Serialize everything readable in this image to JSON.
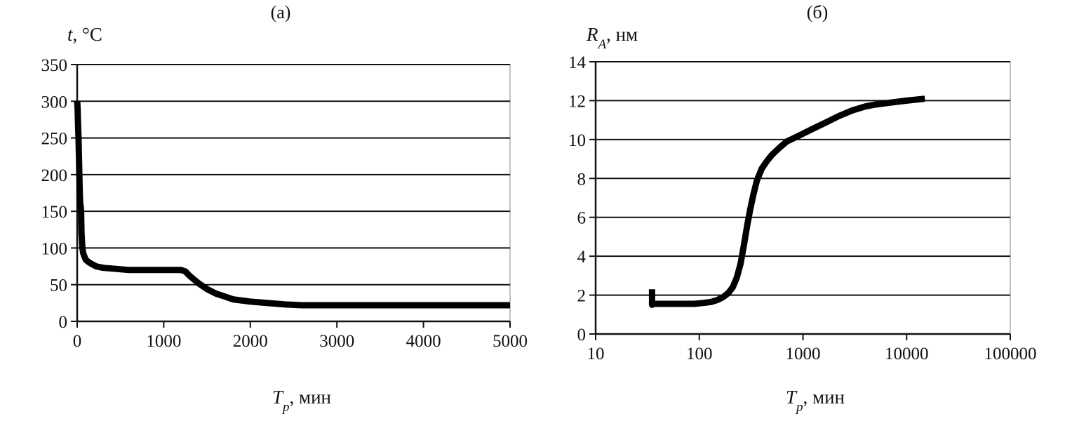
{
  "chart_data": [
    {
      "type": "line",
      "panel_label": "(а)",
      "ylabel": {
        "symbol": "t",
        "unit": ", °C"
      },
      "xlabel": {
        "symbol": "T",
        "sub": "p",
        "unit": ", мин"
      },
      "xlim": [
        0,
        5000
      ],
      "ylim": [
        0,
        350
      ],
      "x_ticks": [
        0,
        1000,
        2000,
        3000,
        4000,
        5000
      ],
      "y_ticks": [
        0,
        50,
        100,
        150,
        200,
        250,
        300,
        350
      ],
      "grid": "horizontal",
      "line_color": "#000000",
      "series": [
        {
          "x": [
            0,
            5,
            10,
            15,
            20,
            25,
            30,
            35,
            40,
            45,
            50,
            55,
            60,
            70,
            85,
            100,
            130,
            170,
            220,
            300,
            400,
            600,
            800,
            1000,
            1200,
            1250,
            1300,
            1400,
            1500,
            1600,
            1700,
            1800,
            2000,
            2200,
            2400,
            2600,
            3000,
            3500,
            4000,
            4500,
            5000
          ],
          "y": [
            300,
            290,
            270,
            250,
            225,
            200,
            175,
            160,
            158,
            150,
            120,
            110,
            100,
            93,
            88,
            84,
            81,
            78,
            75,
            73,
            72,
            70,
            70,
            70,
            70,
            68,
            62,
            52,
            44,
            38,
            34,
            30,
            27,
            25,
            23,
            22,
            22,
            22,
            22,
            22,
            22
          ]
        }
      ]
    },
    {
      "type": "line",
      "panel_label": "(б)",
      "ylabel": {
        "symbol": "R",
        "sub": "A",
        "unit": ",  нм"
      },
      "xlabel": {
        "symbol": "T",
        "sub": "p",
        "unit": ", мин"
      },
      "xscale": "log",
      "xlim": [
        10,
        100000
      ],
      "ylim": [
        0,
        14
      ],
      "x_ticks": [
        10,
        100,
        1000,
        10000,
        100000
      ],
      "y_ticks": [
        0,
        2,
        4,
        6,
        8,
        10,
        12,
        14
      ],
      "grid": "horizontal",
      "line_color": "#000000",
      "series": [
        {
          "x": [
            35,
            35,
            35,
            40,
            50,
            70,
            90,
            110,
            130,
            150,
            170,
            190,
            210,
            230,
            250,
            270,
            290,
            310,
            330,
            360,
            400,
            450,
            500,
            600,
            700,
            800,
            1000,
            1300,
            1700,
            2200,
            3000,
            4000,
            5000,
            7000,
            10000,
            15000
          ],
          "y": [
            2.3,
            1.5,
            1.55,
            1.55,
            1.55,
            1.55,
            1.55,
            1.6,
            1.65,
            1.75,
            1.9,
            2.1,
            2.4,
            2.9,
            3.6,
            4.6,
            5.6,
            6.4,
            7.1,
            7.9,
            8.5,
            8.9,
            9.2,
            9.6,
            9.9,
            10.05,
            10.3,
            10.6,
            10.9,
            11.2,
            11.5,
            11.7,
            11.8,
            11.9,
            12.0,
            12.1
          ]
        }
      ]
    }
  ]
}
